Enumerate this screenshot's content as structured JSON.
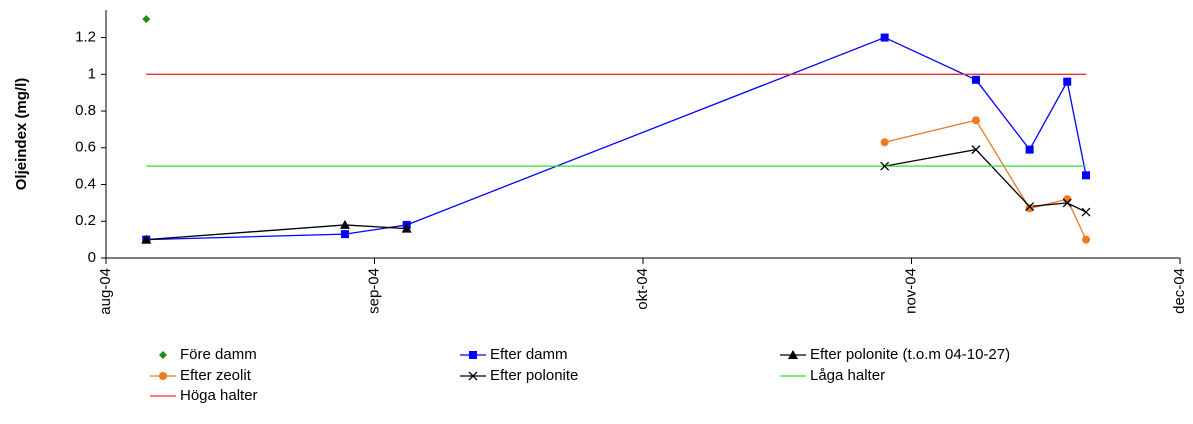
{
  "chart_data": {
    "type": "line",
    "y_label": "Oljeindex (mg/l)",
    "xlim": [
      8,
      12
    ],
    "xticks": [
      {
        "value": 8,
        "label": "aug-04"
      },
      {
        "value": 9,
        "label": "sep-04"
      },
      {
        "value": 10,
        "label": "okt-04"
      },
      {
        "value": 11,
        "label": "nov-04"
      },
      {
        "value": 12,
        "label": "dec-04"
      }
    ],
    "ylim": [
      0,
      1.35
    ],
    "yticks": [
      0,
      0.2,
      0.4,
      0.6,
      0.8,
      1,
      1.2
    ],
    "grid": false,
    "legend": "bottom",
    "series": [
      {
        "name": "Före damm",
        "color": "#1e8c1e",
        "marker": "diamond",
        "line": false,
        "x": [
          8.15
        ],
        "values": [
          1.3
        ]
      },
      {
        "name": "Efter damm",
        "color": "#0000ff",
        "marker": "square",
        "line": true,
        "x": [
          8.15,
          8.89,
          9.12,
          10.9,
          11.24,
          11.44,
          11.58,
          11.65
        ],
        "values": [
          0.1,
          0.13,
          0.18,
          1.2,
          0.97,
          0.59,
          0.96,
          0.45
        ]
      },
      {
        "name": "Efter polonite (t.o.m 04-10-27)",
        "color": "#000000",
        "marker": "triangle",
        "line": true,
        "x": [
          8.15,
          8.89,
          9.12
        ],
        "values": [
          0.1,
          0.18,
          0.16
        ]
      },
      {
        "name": "Efter zeolit",
        "color": "#f07820",
        "marker": "circle",
        "line": true,
        "x": [
          10.9,
          11.24,
          11.44,
          11.58,
          11.65
        ],
        "values": [
          0.63,
          0.75,
          0.27,
          0.32,
          0.1
        ]
      },
      {
        "name": "Efter polonite",
        "color": "#000000",
        "marker": "cross",
        "line": true,
        "x": [
          10.9,
          11.24,
          11.44,
          11.58,
          11.65
        ],
        "values": [
          0.5,
          0.59,
          0.28,
          0.3,
          0.25
        ]
      },
      {
        "name": "Låga halter",
        "color": "#33dd33",
        "marker": "none",
        "line": true,
        "x": [
          8.15,
          11.65
        ],
        "values": [
          0.5,
          0.5
        ]
      },
      {
        "name": "Höga halter",
        "color": "#e8302a",
        "marker": "none",
        "line": true,
        "x": [
          8.15,
          11.65
        ],
        "values": [
          1,
          1
        ]
      }
    ]
  }
}
